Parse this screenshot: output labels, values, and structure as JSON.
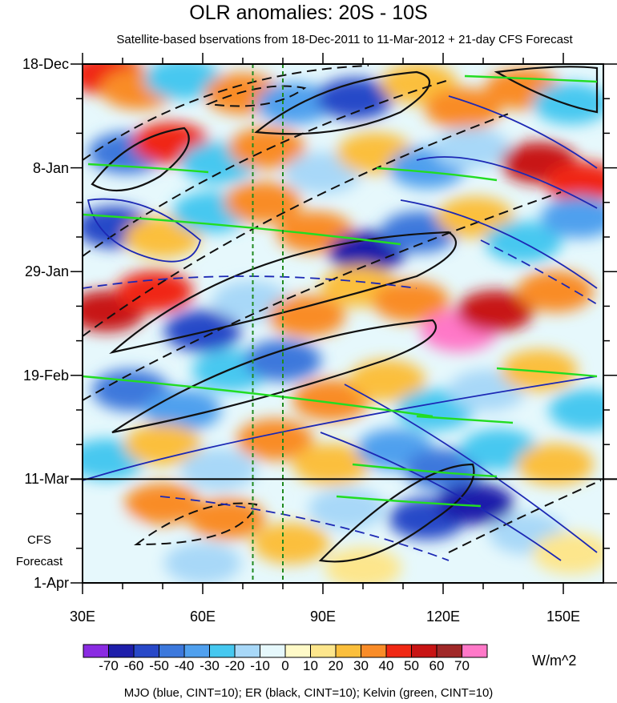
{
  "chart_data": {
    "type": "heatmap",
    "title": "OLR anomalies: 20S - 10S",
    "subtitle": "Satellite-based bservations from 18-Dec-2011 to 11-Mar-2012 + 21-day CFS Forecast",
    "x_axis": {
      "range": [
        30,
        160
      ],
      "ticks": [
        {
          "value": 30,
          "label": "30E"
        },
        {
          "value": 60,
          "label": "60E"
        },
        {
          "value": 90,
          "label": "90E"
        },
        {
          "value": 120,
          "label": "120E"
        },
        {
          "value": 150,
          "label": "150E"
        }
      ]
    },
    "y_axis": {
      "direction": "time-downward",
      "range_days": [
        0,
        105
      ],
      "ticks": [
        {
          "day": 0,
          "label": "18-Dec"
        },
        {
          "day": 21,
          "label": "8-Jan"
        },
        {
          "day": 42,
          "label": "29-Jan"
        },
        {
          "day": 63,
          "label": "19-Feb"
        },
        {
          "day": 84,
          "label": "11-Mar"
        },
        {
          "day": 105,
          "label": "1-Apr"
        }
      ]
    },
    "forecast_label_lines": [
      "CFS",
      "Forecast"
    ],
    "forecast_start_day": 84,
    "reference_lines_lon": [
      72.5,
      80
    ],
    "colorbar": {
      "units": "W/m^2",
      "levels": [
        -70,
        -60,
        -50,
        -40,
        -30,
        -20,
        -10,
        0,
        10,
        20,
        30,
        40,
        50,
        60,
        70
      ],
      "colors": [
        "#8a2be2",
        "#1e1eaa",
        "#2848c8",
        "#3c78dc",
        "#50a0ee",
        "#46c8f0",
        "#a8d8f8",
        "#e6f8fc",
        "#fffac8",
        "#fde68c",
        "#fbbf3c",
        "#f98c28",
        "#f02814",
        "#c81414",
        "#a02828",
        "#ff78c8"
      ]
    },
    "anomaly_cells": [
      {
        "lon": 36,
        "day": 2,
        "value": 40
      },
      {
        "lon": 44,
        "day": 5,
        "value": 30
      },
      {
        "lon": 55,
        "day": 3,
        "value": -30
      },
      {
        "lon": 70,
        "day": 6,
        "value": 30
      },
      {
        "lon": 83,
        "day": 8,
        "value": -40
      },
      {
        "lon": 98,
        "day": 7,
        "value": -60
      },
      {
        "lon": 114,
        "day": 4,
        "value": 20
      },
      {
        "lon": 125,
        "day": 9,
        "value": 30
      },
      {
        "lon": 140,
        "day": 5,
        "value": 30
      },
      {
        "lon": 152,
        "day": 8,
        "value": -30
      },
      {
        "lon": 41,
        "day": 18,
        "value": -50
      },
      {
        "lon": 52,
        "day": 16,
        "value": 40
      },
      {
        "lon": 64,
        "day": 20,
        "value": -30
      },
      {
        "lon": 76,
        "day": 17,
        "value": 30
      },
      {
        "lon": 90,
        "day": 22,
        "value": -20
      },
      {
        "lon": 103,
        "day": 18,
        "value": 20
      },
      {
        "lon": 116,
        "day": 21,
        "value": -40
      },
      {
        "lon": 127,
        "day": 17,
        "value": -20
      },
      {
        "lon": 144,
        "day": 20,
        "value": 50
      },
      {
        "lon": 155,
        "day": 24,
        "value": 40
      },
      {
        "lon": 38,
        "day": 33,
        "value": -60
      },
      {
        "lon": 50,
        "day": 35,
        "value": 20
      },
      {
        "lon": 62,
        "day": 30,
        "value": -30
      },
      {
        "lon": 75,
        "day": 28,
        "value": 30
      },
      {
        "lon": 88,
        "day": 34,
        "value": 30
      },
      {
        "lon": 101,
        "day": 38,
        "value": -70
      },
      {
        "lon": 114,
        "day": 34,
        "value": -50
      },
      {
        "lon": 128,
        "day": 31,
        "value": 20
      },
      {
        "lon": 140,
        "day": 36,
        "value": -30
      },
      {
        "lon": 154,
        "day": 31,
        "value": -40
      },
      {
        "lon": 36,
        "day": 50,
        "value": 50
      },
      {
        "lon": 48,
        "day": 46,
        "value": 40
      },
      {
        "lon": 60,
        "day": 54,
        "value": -60
      },
      {
        "lon": 72,
        "day": 48,
        "value": -20
      },
      {
        "lon": 86,
        "day": 51,
        "value": 30
      },
      {
        "lon": 99,
        "day": 45,
        "value": 20
      },
      {
        "lon": 112,
        "day": 48,
        "value": 30
      },
      {
        "lon": 124,
        "day": 54,
        "value": 70
      },
      {
        "lon": 133,
        "day": 50,
        "value": 50
      },
      {
        "lon": 148,
        "day": 46,
        "value": 30
      },
      {
        "lon": 42,
        "day": 66,
        "value": -50
      },
      {
        "lon": 55,
        "day": 70,
        "value": -40
      },
      {
        "lon": 67,
        "day": 62,
        "value": -30
      },
      {
        "lon": 80,
        "day": 60,
        "value": -50
      },
      {
        "lon": 92,
        "day": 68,
        "value": 30
      },
      {
        "lon": 106,
        "day": 64,
        "value": 20
      },
      {
        "lon": 118,
        "day": 70,
        "value": -30
      },
      {
        "lon": 131,
        "day": 66,
        "value": -20
      },
      {
        "lon": 144,
        "day": 62,
        "value": 20
      },
      {
        "lon": 156,
        "day": 70,
        "value": -30
      },
      {
        "lon": 36,
        "day": 80,
        "value": -30
      },
      {
        "lon": 50,
        "day": 77,
        "value": 20
      },
      {
        "lon": 64,
        "day": 82,
        "value": -20
      },
      {
        "lon": 78,
        "day": 76,
        "value": 30
      },
      {
        "lon": 92,
        "day": 81,
        "value": 20
      },
      {
        "lon": 108,
        "day": 78,
        "value": -40
      },
      {
        "lon": 120,
        "day": 82,
        "value": -50
      },
      {
        "lon": 134,
        "day": 78,
        "value": -30
      },
      {
        "lon": 148,
        "day": 81,
        "value": 20
      },
      {
        "lon": 35,
        "day": 95,
        "value": -10
      },
      {
        "lon": 50,
        "day": 89,
        "value": 30
      },
      {
        "lon": 66,
        "day": 92,
        "value": 30
      },
      {
        "lon": 82,
        "day": 97,
        "value": 20
      },
      {
        "lon": 96,
        "day": 90,
        "value": -20
      },
      {
        "lon": 116,
        "day": 92,
        "value": -60
      },
      {
        "lon": 128,
        "day": 89,
        "value": -70
      },
      {
        "lon": 141,
        "day": 95,
        "value": -20
      },
      {
        "lon": 152,
        "day": 99,
        "value": 10
      },
      {
        "lon": 60,
        "day": 101,
        "value": -20
      },
      {
        "lon": 100,
        "day": 102,
        "value": 10
      }
    ],
    "contour_legend": "MJO (blue, CINT=10); ER (black, CINT=10); Kelvin (green, CINT=10)"
  }
}
